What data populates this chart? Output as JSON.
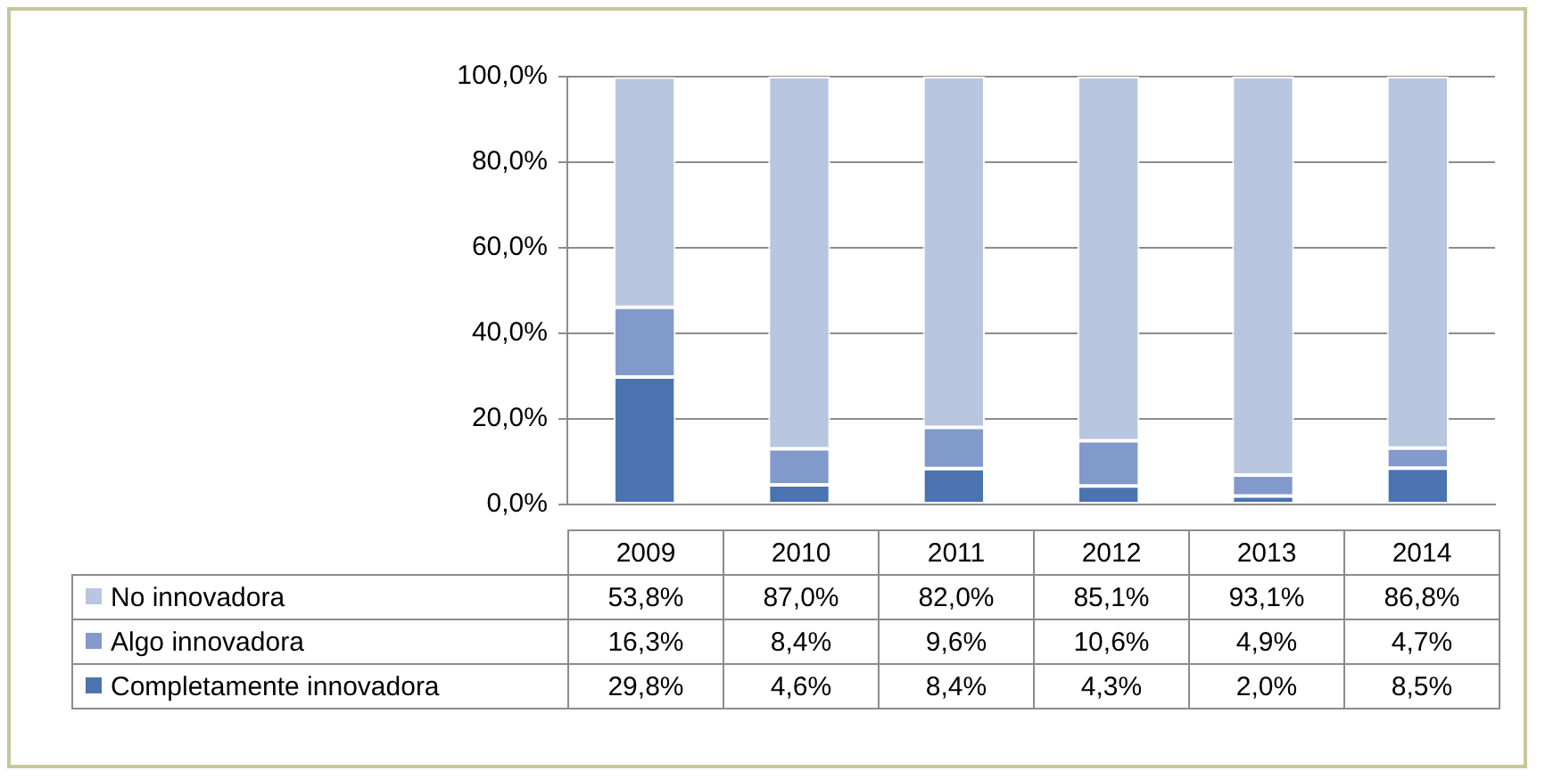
{
  "chart_data": {
    "type": "bar",
    "stacked": true,
    "categories": [
      "2009",
      "2010",
      "2011",
      "2012",
      "2013",
      "2014"
    ],
    "series": [
      {
        "name": "Completamente  innovadora",
        "color": "#4a73b0",
        "values": [
          29.8,
          4.6,
          8.4,
          4.3,
          2.0,
          8.5
        ],
        "value_labels": [
          "29,8%",
          "4,6%",
          "8,4%",
          "4,3%",
          "2,0%",
          "8,5%"
        ]
      },
      {
        "name": "Algo innovadora",
        "color": "#829acb",
        "values": [
          16.3,
          8.4,
          9.6,
          10.6,
          4.9,
          4.7
        ],
        "value_labels": [
          "16,3%",
          "8,4%",
          "9,6%",
          "10,6%",
          "4,9%",
          "4,7%"
        ]
      },
      {
        "name": "No innovadora",
        "color": "#b8c6e0",
        "values": [
          53.8,
          87.0,
          82.0,
          85.1,
          93.1,
          86.8
        ],
        "value_labels": [
          "53,8%",
          "87,0%",
          "82,0%",
          "85,1%",
          "93,1%",
          "86,8%"
        ]
      }
    ],
    "ylim": [
      0,
      100
    ],
    "yticks": [
      {
        "value": 0,
        "label": "0,0%"
      },
      {
        "value": 20,
        "label": "20,0%"
      },
      {
        "value": 40,
        "label": "40,0%"
      },
      {
        "value": 60,
        "label": "60,0%"
      },
      {
        "value": 80,
        "label": "80,0%"
      },
      {
        "value": 100,
        "label": "100,0%"
      }
    ],
    "grid": "y",
    "legend": "bottom"
  }
}
